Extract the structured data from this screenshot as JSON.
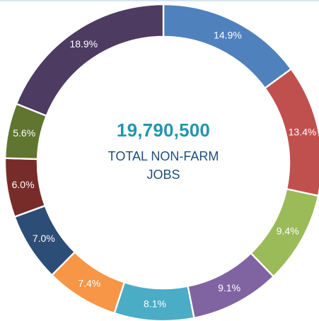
{
  "chart_data": {
    "type": "pie",
    "subtype": "donut",
    "center_value": "19,790,500",
    "center_caption": "TOTAL NON-FARM JOBS",
    "slices": [
      {
        "value": 14.9,
        "label": "14.9%",
        "color": "#4f81bd"
      },
      {
        "value": 13.4,
        "label": "13.4%",
        "color": "#c0504d"
      },
      {
        "value": 9.4,
        "label": "9.4%",
        "color": "#9bbb59"
      },
      {
        "value": 9.1,
        "label": "9.1%",
        "color": "#8064a2"
      },
      {
        "value": 8.1,
        "label": "8.1%",
        "color": "#4bacc6"
      },
      {
        "value": 7.4,
        "label": "7.4%",
        "color": "#f79646"
      },
      {
        "value": 7.0,
        "label": "7.0%",
        "color": "#2c4d75"
      },
      {
        "value": 6.0,
        "label": "6.0%",
        "color": "#772c2a"
      },
      {
        "value": 5.6,
        "label": "5.6%",
        "color": "#5f7530"
      },
      {
        "value": 18.9,
        "label": "18.9%",
        "color": "#4d3b62"
      }
    ]
  }
}
